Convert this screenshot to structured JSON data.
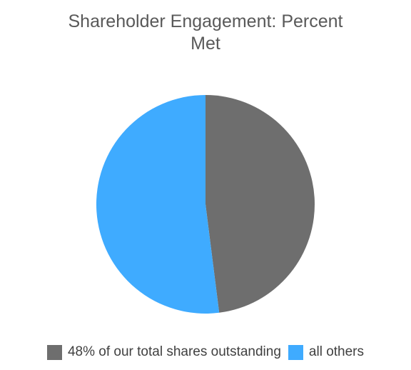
{
  "chart_data": {
    "type": "pie",
    "title": "Shareholder Engagement: Percent Met",
    "categories": [
      "48% of our total shares outstanding",
      "all others"
    ],
    "values": [
      48,
      52
    ],
    "colors": [
      "#6e6e6e",
      "#3fabff"
    ]
  }
}
